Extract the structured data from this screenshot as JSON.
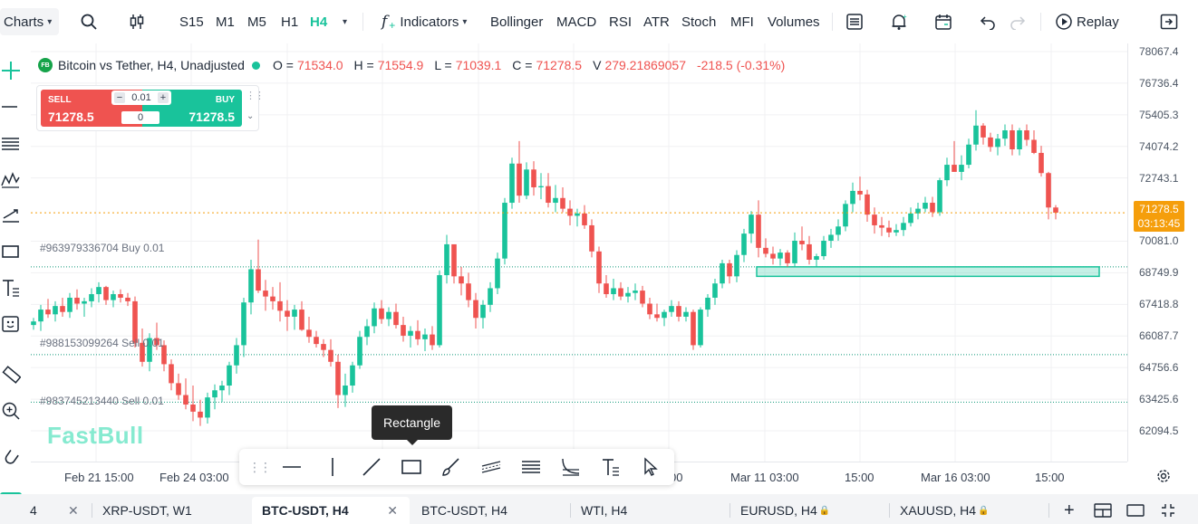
{
  "toolbar": {
    "charts_label": "Charts",
    "timeframes": [
      "S15",
      "M1",
      "M5",
      "H1",
      "H4"
    ],
    "active_timeframe": "H4",
    "indicators_label": "Indicators",
    "indicator_items": [
      "Bollinger",
      "MACD",
      "RSI",
      "ATR",
      "Stoch",
      "MFI",
      "Volumes"
    ],
    "replay_label": "Replay"
  },
  "legend": {
    "badge": "FB",
    "symbol_title": "Bitcoin vs Tether, H4, Unadjusted",
    "o_key": "O =",
    "o_val": "71534.0",
    "h_key": "H =",
    "h_val": "71554.9",
    "l_key": "L =",
    "l_val": "71039.1",
    "c_key": "C =",
    "c_val": "71278.5",
    "v_key": "V",
    "v_val": "279.21869057",
    "change": "-218.5 (-0.31%)"
  },
  "trade": {
    "sell_label": "SELL",
    "sell_price": "71278.5",
    "buy_label": "BUY",
    "buy_price": "71278.5",
    "quantity": "0.01",
    "spread": "0"
  },
  "orders": [
    {
      "label": "#963979336704 Buy 0.01"
    },
    {
      "label": "#988153099264 Sell 0.01"
    },
    {
      "label": "#983745213440 Sell 0.01"
    }
  ],
  "price_axis": [
    "78067.4",
    "76736.4",
    "75405.3",
    "74074.2",
    "72743.1",
    "70081.0",
    "68749.9",
    "67418.8",
    "66087.7",
    "64756.6",
    "63425.6",
    "62094.5"
  ],
  "current_price": {
    "price": "71278.5",
    "countdown": "03:13:45"
  },
  "time_axis": [
    "Feb 21 15:00",
    "Feb 24 03:00",
    "00",
    "Mar 11 03:00",
    "15:00",
    "Mar 16 03:00",
    "15:00"
  ],
  "watermark": "FastBull",
  "tooltip": "Rectangle",
  "tabs": [
    {
      "label": "XRP-USDT, W1",
      "locked": false
    },
    {
      "label": "BTC-USDT, H4",
      "locked": false
    },
    {
      "label": "BTC-USDT, H4",
      "locked": false
    },
    {
      "label": "WTI, H4",
      "locked": false
    },
    {
      "label": "EURUSD, H4",
      "locked": true
    },
    {
      "label": "XAUUSD, H4",
      "locked": true
    }
  ],
  "first_tab_fragment": "4",
  "colors": {
    "up": "#19c39b",
    "down": "#ef5350",
    "price_tag": "#f59e0b",
    "rectangle": "#19c39b"
  },
  "chart_data": {
    "type": "candlestick",
    "ylim": [
      61500,
      78300
    ],
    "candles": [
      [
        66550,
        66850,
        66350,
        66700
      ],
      [
        66700,
        67400,
        66300,
        67200
      ],
      [
        67200,
        67650,
        66850,
        67000
      ],
      [
        67000,
        67550,
        66700,
        67350
      ],
      [
        67350,
        67700,
        66900,
        67100
      ],
      [
        67100,
        67900,
        66850,
        67700
      ],
      [
        67700,
        68050,
        67200,
        67450
      ],
      [
        67450,
        67700,
        66900,
        67550
      ],
      [
        67550,
        68100,
        67300,
        67850
      ],
      [
        67850,
        68350,
        67500,
        68150
      ],
      [
        68150,
        68200,
        67400,
        67600
      ],
      [
        67600,
        68000,
        67300,
        67850
      ],
      [
        67850,
        68050,
        67500,
        67700
      ],
      [
        67700,
        67900,
        67350,
        67550
      ],
      [
        67550,
        67750,
        65600,
        65800
      ],
      [
        65800,
        66400,
        64800,
        65000
      ],
      [
        65000,
        66200,
        64600,
        66000
      ],
      [
        66000,
        66650,
        65500,
        65700
      ],
      [
        65700,
        65900,
        64600,
        64900
      ],
      [
        64900,
        65100,
        63800,
        64100
      ],
      [
        64100,
        64500,
        63400,
        63600
      ],
      [
        63600,
        64300,
        63000,
        63200
      ],
      [
        63200,
        64000,
        62500,
        62900
      ],
      [
        62900,
        63400,
        62300,
        62650
      ],
      [
        62650,
        63700,
        62400,
        63500
      ],
      [
        63500,
        64050,
        63000,
        63800
      ],
      [
        63800,
        64200,
        63300,
        64000
      ],
      [
        64000,
        65000,
        63600,
        64850
      ],
      [
        64850,
        66000,
        64500,
        65700
      ],
      [
        65700,
        67700,
        65200,
        67500
      ],
      [
        67500,
        69300,
        67000,
        68900
      ],
      [
        68900,
        70150,
        67900,
        68000
      ],
      [
        68000,
        68450,
        67150,
        67750
      ],
      [
        67750,
        68150,
        67200,
        67550
      ],
      [
        67550,
        68350,
        66700,
        67150
      ],
      [
        67150,
        67600,
        66300,
        66900
      ],
      [
        66900,
        67400,
        66350,
        67200
      ],
      [
        67200,
        67550,
        66300,
        66350
      ],
      [
        66350,
        66900,
        65800,
        66050
      ],
      [
        66050,
        66300,
        65600,
        65750
      ],
      [
        65750,
        65950,
        65200,
        65500
      ],
      [
        65500,
        65950,
        64800,
        65000
      ],
      [
        65000,
        65300,
        63050,
        63600
      ],
      [
        63600,
        64500,
        63100,
        64000
      ],
      [
        64000,
        65000,
        63700,
        64850
      ],
      [
        64850,
        66300,
        64700,
        66050
      ],
      [
        66050,
        66800,
        65700,
        66500
      ],
      [
        66500,
        67500,
        66200,
        67250
      ],
      [
        67250,
        67600,
        66600,
        66800
      ],
      [
        66800,
        67300,
        66500,
        67100
      ],
      [
        67100,
        67450,
        66400,
        66550
      ],
      [
        66550,
        66900,
        65850,
        66100
      ],
      [
        66100,
        66500,
        65600,
        66300
      ],
      [
        66300,
        66750,
        65700,
        65950
      ],
      [
        65950,
        66400,
        65450,
        66150
      ],
      [
        66150,
        66500,
        65500,
        65700
      ],
      [
        65700,
        68850,
        65600,
        68650
      ],
      [
        68650,
        70350,
        68300,
        69950
      ],
      [
        69950,
        69900,
        68300,
        68600
      ],
      [
        68600,
        69000,
        67800,
        68300
      ],
      [
        68300,
        68750,
        67300,
        67600
      ],
      [
        67600,
        67900,
        66400,
        66850
      ],
      [
        66850,
        67600,
        66400,
        67400
      ],
      [
        67400,
        68350,
        67100,
        68100
      ],
      [
        68100,
        69600,
        67850,
        69350
      ],
      [
        69350,
        71900,
        69100,
        71700
      ],
      [
        71700,
        73600,
        71450,
        73350
      ],
      [
        73350,
        74300,
        71700,
        72000
      ],
      [
        72000,
        73400,
        71850,
        73100
      ],
      [
        73100,
        73450,
        72000,
        72350
      ],
      [
        72350,
        72950,
        71850,
        72400
      ],
      [
        72400,
        72950,
        71500,
        71700
      ],
      [
        71700,
        72450,
        71300,
        71900
      ],
      [
        71900,
        72350,
        71300,
        71450
      ],
      [
        71450,
        71800,
        70750,
        71150
      ],
      [
        71150,
        71450,
        70700,
        71250
      ],
      [
        71250,
        71600,
        70600,
        70750
      ],
      [
        70750,
        71000,
        69400,
        69650
      ],
      [
        69650,
        69850,
        67900,
        68300
      ],
      [
        68300,
        68650,
        67700,
        67850
      ],
      [
        67850,
        68500,
        67600,
        68100
      ],
      [
        68100,
        68350,
        67600,
        67750
      ],
      [
        67750,
        68150,
        67500,
        67900
      ],
      [
        67900,
        68300,
        67600,
        68000
      ],
      [
        68000,
        68200,
        67300,
        67450
      ],
      [
        67450,
        67700,
        66800,
        67000
      ],
      [
        67000,
        67450,
        66700,
        66850
      ],
      [
        66850,
        67200,
        66500,
        67100
      ],
      [
        67100,
        67600,
        66900,
        67350
      ],
      [
        67350,
        67550,
        66700,
        66900
      ],
      [
        66900,
        67300,
        66700,
        67100
      ],
      [
        67100,
        67200,
        65500,
        65700
      ],
      [
        65700,
        67300,
        65600,
        67200
      ],
      [
        67200,
        67850,
        66900,
        67700
      ],
      [
        67700,
        68500,
        67400,
        68300
      ],
      [
        68300,
        69300,
        68100,
        69150
      ],
      [
        69150,
        69300,
        68300,
        68600
      ],
      [
        68600,
        69700,
        68350,
        69500
      ],
      [
        69500,
        70600,
        69200,
        70400
      ],
      [
        70400,
        71350,
        70000,
        71200
      ],
      [
        71200,
        71800,
        69400,
        69800
      ],
      [
        69800,
        70200,
        69400,
        69550
      ],
      [
        69550,
        69850,
        69100,
        69350
      ],
      [
        69350,
        69750,
        69050,
        69600
      ],
      [
        69600,
        69700,
        69000,
        69150
      ],
      [
        69150,
        70450,
        69000,
        70100
      ],
      [
        70100,
        70700,
        69700,
        69950
      ],
      [
        69950,
        70300,
        69100,
        69300
      ],
      [
        69300,
        69550,
        69000,
        69450
      ],
      [
        69450,
        70300,
        69300,
        70100
      ],
      [
        70100,
        70600,
        69800,
        70350
      ],
      [
        70350,
        71000,
        70100,
        70700
      ],
      [
        70700,
        71800,
        70500,
        71650
      ],
      [
        71650,
        72550,
        71300,
        72200
      ],
      [
        72200,
        72800,
        71800,
        72050
      ],
      [
        72050,
        72250,
        70900,
        71200
      ],
      [
        71200,
        71500,
        70400,
        70750
      ],
      [
        70750,
        71100,
        70300,
        70650
      ],
      [
        70650,
        70950,
        70250,
        70450
      ],
      [
        70450,
        70800,
        70300,
        70550
      ],
      [
        70550,
        71100,
        70300,
        70850
      ],
      [
        70850,
        71500,
        70700,
        71250
      ],
      [
        71250,
        71700,
        71000,
        71450
      ],
      [
        71450,
        71950,
        71300,
        71700
      ],
      [
        71700,
        71950,
        71100,
        71300
      ],
      [
        71300,
        72750,
        71150,
        72650
      ],
      [
        72650,
        73600,
        72400,
        73300
      ],
      [
        73300,
        74300,
        73100,
        73000
      ],
      [
        73000,
        73700,
        72650,
        73300
      ],
      [
        73300,
        74400,
        73150,
        74150
      ],
      [
        74150,
        75600,
        73900,
        74950
      ],
      [
        74950,
        75050,
        74150,
        74450
      ],
      [
        74450,
        74650,
        73850,
        74050
      ],
      [
        74050,
        74600,
        73700,
        74400
      ],
      [
        74400,
        75000,
        74100,
        74750
      ],
      [
        74750,
        75000,
        73700,
        73950
      ],
      [
        73950,
        74850,
        73700,
        74750
      ],
      [
        74750,
        75000,
        74100,
        74350
      ],
      [
        74350,
        74750,
        73750,
        73800
      ],
      [
        73800,
        74100,
        72800,
        72950
      ],
      [
        72950,
        73000,
        71000,
        71500
      ],
      [
        71500,
        71600,
        71000,
        71280
      ]
    ],
    "order_lines": [
      {
        "price": 69000,
        "side": "buy"
      },
      {
        "price": 65300,
        "side": "sell"
      },
      {
        "price": 63300,
        "side": "sell"
      }
    ],
    "current_price": 71278.5,
    "rectangle": {
      "price_top": 69000,
      "price_bottom": 68600,
      "from": "Mar 11 03:00",
      "to": "extends right"
    }
  }
}
